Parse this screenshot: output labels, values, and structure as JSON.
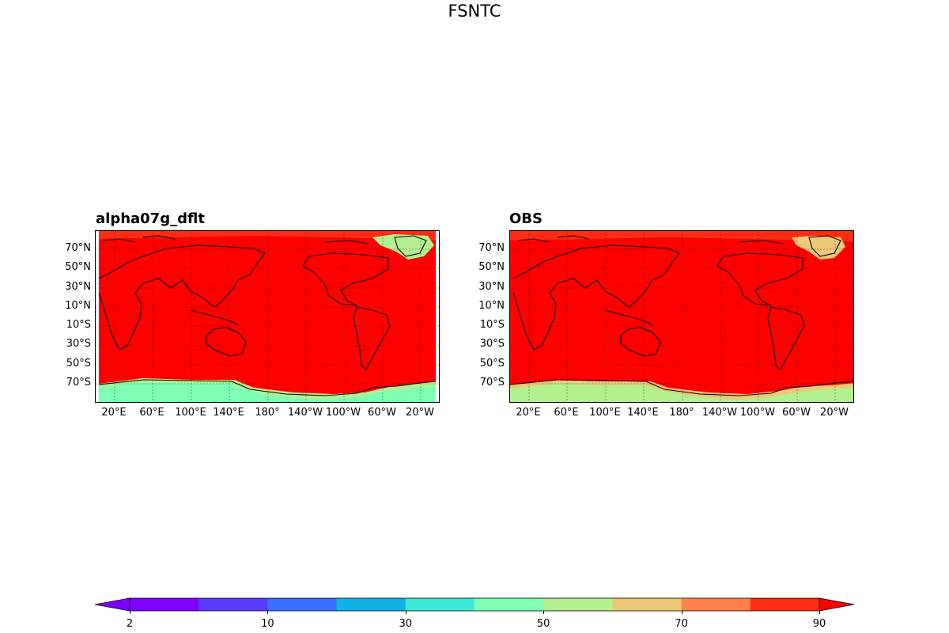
{
  "figure": {
    "title": "FSNTC"
  },
  "maps": [
    {
      "id": "left",
      "title": "alpha07g_dflt",
      "south_fill": "#7effb4",
      "greenland_fill": "#b2f18e",
      "edge_fill": "#ff2b14"
    },
    {
      "id": "right",
      "title": "OBS",
      "south_fill": "#b2f18e",
      "greenland_fill": "#ecc878",
      "edge_fill": "#ff2b14"
    }
  ],
  "axes": {
    "lat_labels": [
      "70°N",
      "50°N",
      "30°N",
      "10°N",
      "10°S",
      "30°S",
      "50°S",
      "70°S"
    ],
    "lon_labels": [
      "20°E",
      "60°E",
      "100°E",
      "140°E",
      "180°",
      "140°W",
      "100°W",
      "60°W",
      "20°W"
    ]
  },
  "chart_data": {
    "type": "heatmap",
    "title": "FSNTC",
    "panels": [
      "alpha07g_dflt",
      "OBS"
    ],
    "colorbar": {
      "levels": [
        2,
        5,
        10,
        20,
        30,
        40,
        50,
        60,
        70,
        80,
        90
      ],
      "tick_labels": [
        "2",
        "10",
        "30",
        "50",
        "70",
        "90"
      ],
      "tick_values": [
        2,
        10,
        30,
        50,
        70,
        90
      ],
      "colors": [
        "#8000ff",
        "#5a3cff",
        "#3a70ff",
        "#12b2e8",
        "#3ee8d6",
        "#7effb4",
        "#b2f18e",
        "#ecc878",
        "#ff8048",
        "#ff2b14"
      ],
      "extend": "both",
      "under_color": "#7f00ff",
      "over_color": "#ff0000"
    }
  }
}
